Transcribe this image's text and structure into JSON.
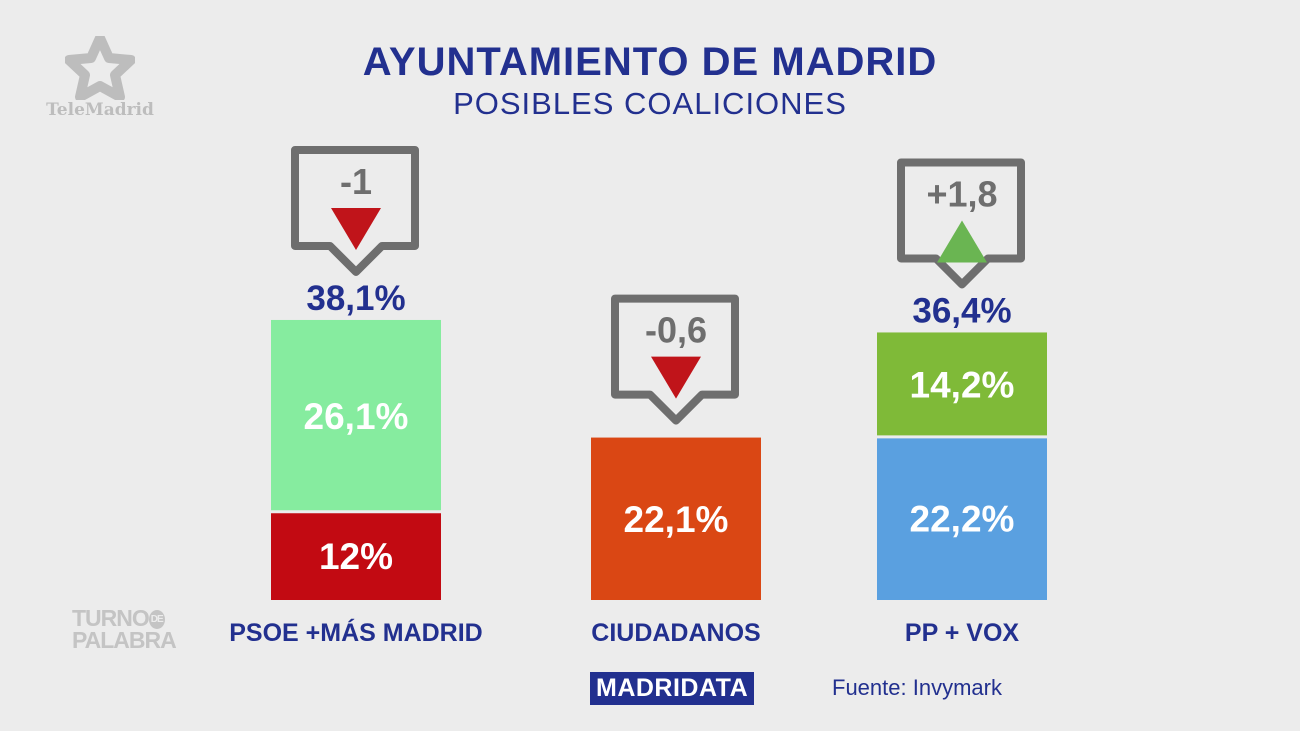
{
  "branding": {
    "channel_logo": "TeleMadrid",
    "program_logo": [
      "TURNO",
      "DE",
      "PALABRA"
    ]
  },
  "header": {
    "title": "AYUNTAMIENTO DE MADRID",
    "subtitle": "POSIBLES COALICIONES"
  },
  "footer": {
    "badge": "MADRIDATA",
    "source": "Fuente: Invymark"
  },
  "chart_data": {
    "type": "bar",
    "stacked": true,
    "title": "AYUNTAMIENTO DE MADRID",
    "subtitle": "POSIBLES COALICIONES",
    "categories": [
      "PSOE +MÁS MADRID",
      "CIUDADANOS",
      "PP + VOX"
    ],
    "bars": [
      {
        "category": "PSOE +MÁS MADRID",
        "total_label": "38,1%",
        "total": 38.1,
        "segments": [
          {
            "value": 12,
            "label": "12%",
            "color": "#c20a12"
          },
          {
            "value": 26.1,
            "label": "26,1%",
            "color": "#86ec9f"
          }
        ],
        "change": {
          "label": "-1",
          "value": -1,
          "direction": "down",
          "color": "#c0141a"
        }
      },
      {
        "category": "CIUDADANOS",
        "total_label": "",
        "total": 22.1,
        "segments": [
          {
            "value": 22.1,
            "label": "22,1%",
            "color": "#da4714"
          }
        ],
        "change": {
          "label": "-0,6",
          "value": -0.6,
          "direction": "down",
          "color": "#c0141a"
        }
      },
      {
        "category": "PP + VOX",
        "total_label": "36,4%",
        "total": 36.4,
        "segments": [
          {
            "value": 22.2,
            "label": "22,2%",
            "color": "#5aa0e0"
          },
          {
            "value": 14.2,
            "label": "14,2%",
            "color": "#7fba38"
          }
        ],
        "change": {
          "label": "+1,8",
          "value": 1.8,
          "direction": "up",
          "color": "#6ab552"
        }
      }
    ],
    "grid": false,
    "legend": "none",
    "text_color": "#22308f"
  }
}
